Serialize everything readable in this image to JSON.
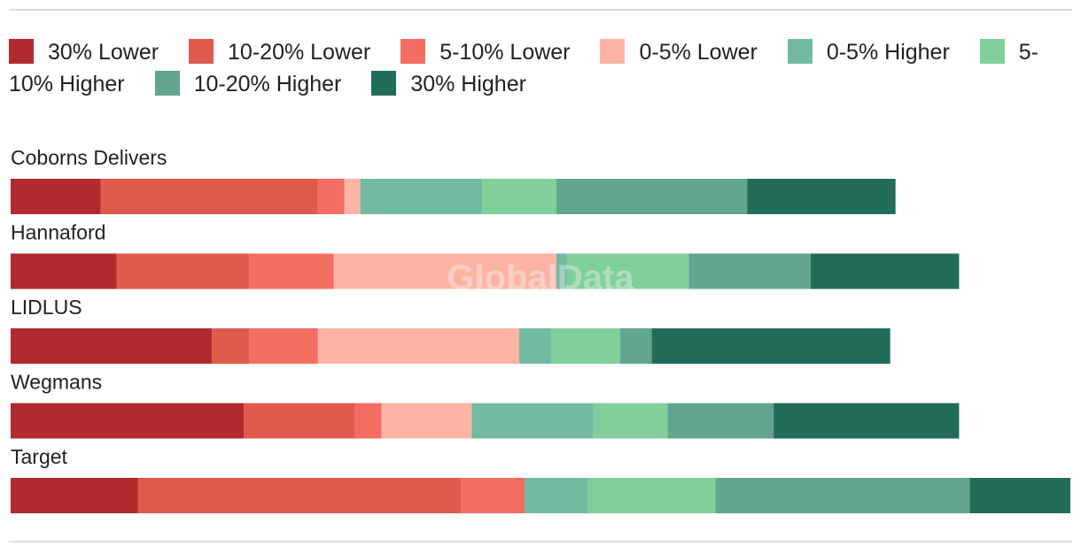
{
  "watermark": "GlobalData",
  "chart_data": {
    "type": "bar",
    "orientation": "horizontal",
    "stacked": true,
    "legend_position": "top",
    "grid": false,
    "categories": [
      "Coborns Delivers",
      "Hannaford",
      "LIDLUS",
      "Wegmans",
      "Target"
    ],
    "series": [
      {
        "name": "30% Lower",
        "color": "#b02a2e",
        "values": [
          8.5,
          10.0,
          19.0,
          22.0,
          12.0
        ]
      },
      {
        "name": "10-20% Lower",
        "color": "#e05a4e",
        "values": [
          20.5,
          12.5,
          3.5,
          10.5,
          30.5
        ]
      },
      {
        "name": "5-10% Lower",
        "color": "#f46d62",
        "values": [
          2.5,
          8.0,
          6.5,
          2.5,
          6.0
        ]
      },
      {
        "name": "0-5% Lower",
        "color": "#fdb4a5",
        "values": [
          1.5,
          21.0,
          19.0,
          8.5,
          0
        ]
      },
      {
        "name": "0-5% Higher",
        "color": "#73bba0",
        "values": [
          11.5,
          1.0,
          3.0,
          11.5,
          6.0
        ]
      },
      {
        "name": "5-10% Higher",
        "color": "#81cf9b",
        "values": [
          7.0,
          11.5,
          6.5,
          7.0,
          12.0
        ]
      },
      {
        "name": "10-20% Higher",
        "color": "#62a68f",
        "values": [
          18.0,
          11.5,
          3.0,
          10.0,
          24.0
        ]
      },
      {
        "name": "30% Higher",
        "color": "#226d59",
        "values": [
          14.0,
          14.0,
          22.5,
          17.5,
          9.5
        ]
      }
    ]
  }
}
